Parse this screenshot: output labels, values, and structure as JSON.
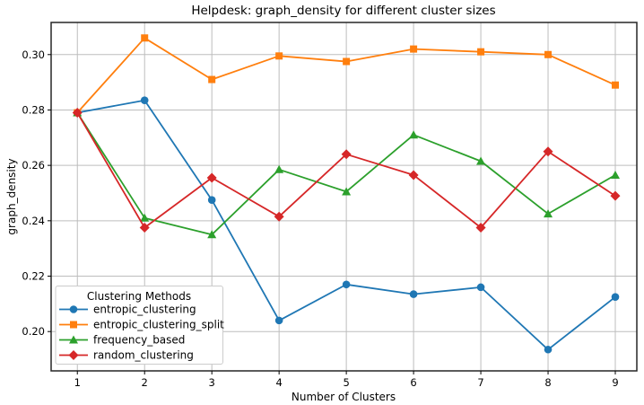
{
  "figure": {
    "title": "Helpdesk: graph_density for different cluster sizes"
  },
  "chart_data": {
    "type": "line",
    "title": "Helpdesk: graph_density for different cluster sizes",
    "xlabel": "Number of Clusters",
    "ylabel": "graph_density",
    "x": [
      1,
      2,
      3,
      4,
      5,
      6,
      7,
      8,
      9
    ],
    "series": [
      {
        "name": "entropic_clustering",
        "color": "#1f77b4",
        "marker": "circle",
        "values": [
          0.279,
          0.2835,
          0.2475,
          0.204,
          0.217,
          0.2135,
          0.216,
          0.1935,
          0.2125
        ]
      },
      {
        "name": "entropic_clustering_split",
        "color": "#ff7f0e",
        "marker": "square",
        "values": [
          0.279,
          0.306,
          0.291,
          0.2995,
          0.2975,
          0.302,
          0.301,
          0.3,
          0.289
        ]
      },
      {
        "name": "frequency_based",
        "color": "#2ca02c",
        "marker": "triangle",
        "values": [
          0.279,
          0.241,
          0.235,
          0.2585,
          0.2505,
          0.271,
          0.2615,
          0.2425,
          0.2565
        ]
      },
      {
        "name": "random_clustering",
        "color": "#d62728",
        "marker": "diamond",
        "values": [
          0.279,
          0.2375,
          0.2555,
          0.2415,
          0.264,
          0.2565,
          0.2375,
          0.265,
          0.249
        ]
      }
    ],
    "xticks": [
      1,
      2,
      3,
      4,
      5,
      6,
      7,
      8,
      9
    ],
    "yticks": [
      0.2,
      0.22,
      0.24,
      0.26,
      0.28,
      0.3
    ],
    "xlim": [
      0.61,
      9.32
    ],
    "ylim": [
      0.1858,
      0.3116
    ],
    "grid": true,
    "grid_color": "#bdbdbd",
    "spine_color": "#262626",
    "legend": {
      "title": "Clustering Methods",
      "position": "lower left"
    }
  }
}
